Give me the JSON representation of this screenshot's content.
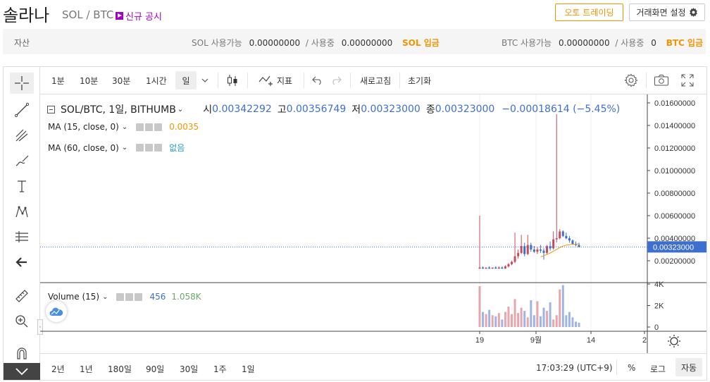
{
  "header": {
    "coin_name": "솔라나",
    "pair": "SOL / BTC",
    "notice": "신규 공시",
    "auto_trade": "오토 트레이딩",
    "screen_settings": "거래화면 설정"
  },
  "assets": {
    "label": "자산",
    "sol": {
      "label": "SOL 사용가능",
      "available": "0.00000000",
      "sep": "/ 사용중",
      "in_use": "0.00000000",
      "deposit": "SOL 입금"
    },
    "btc": {
      "label": "BTC 사용가능",
      "available": "0.00000000",
      "sep": "/ 사용중",
      "in_use": "0",
      "deposit": "BTC 입금"
    }
  },
  "toolbar": {
    "intervals": [
      "1분",
      "10분",
      "30분",
      "1시간",
      "일"
    ],
    "indicator": "지표",
    "refresh": "새로고침",
    "reset": "초기화"
  },
  "legend": {
    "main": "SOL/BTC, 1일, BITHUMB",
    "open_label": "시",
    "open": "0.00342292",
    "high_label": "고",
    "high": "0.00356749",
    "low_label": "저",
    "low": "0.00323000",
    "close_label": "종",
    "close": "0.00323000",
    "change": "−0.00018614 (−5.45%)",
    "ma15_label": "MA (15, close, 0)",
    "ma15_value": "0.0035",
    "ma60_label": "MA (60, close, 0)",
    "ma60_value": "없음",
    "volume_label": "Volume (15)",
    "vol_a": "456",
    "vol_b": "1.058K"
  },
  "bottom": {
    "ranges": [
      "2년",
      "1년",
      "180일",
      "90일",
      "30일",
      "1주",
      "1일"
    ],
    "time": "17:03:29 (UTC+9)",
    "percent": "%",
    "log": "로그",
    "auto": "자동"
  },
  "colors": {
    "up": "#c84a5e",
    "down": "#3d6fd0",
    "accent": "#f29400",
    "notice": "#a300c8"
  },
  "chart_data": {
    "type": "candlestick",
    "price_axis": {
      "ticks": [
        "0.01600000",
        "0.01400000",
        "0.01200000",
        "0.01000000",
        "0.00800000",
        "0.00600000",
        "0.00400000",
        "0.00200000"
      ],
      "current": "0.00323000",
      "range": [
        0,
        0.017
      ]
    },
    "volume_axis": {
      "ticks": [
        "4K",
        "2K",
        "0"
      ]
    },
    "time_axis": {
      "ticks": [
        "19",
        "9월",
        "14",
        "2"
      ]
    },
    "candles": [
      {
        "o": 0.0013,
        "h": 0.006,
        "l": 0.0013,
        "c": 0.0014
      },
      {
        "o": 0.0014,
        "h": 0.0015,
        "l": 0.0013,
        "c": 0.0013
      },
      {
        "o": 0.0013,
        "h": 0.0014,
        "l": 0.0013,
        "c": 0.0014
      },
      {
        "o": 0.0014,
        "h": 0.0015,
        "l": 0.0013,
        "c": 0.0013
      },
      {
        "o": 0.0013,
        "h": 0.0014,
        "l": 0.0013,
        "c": 0.0014
      },
      {
        "o": 0.0014,
        "h": 0.0015,
        "l": 0.0013,
        "c": 0.0013
      },
      {
        "o": 0.0013,
        "h": 0.0015,
        "l": 0.0013,
        "c": 0.0014
      },
      {
        "o": 0.0014,
        "h": 0.0015,
        "l": 0.0013,
        "c": 0.0013
      },
      {
        "o": 0.0013,
        "h": 0.0016,
        "l": 0.0013,
        "c": 0.0015
      },
      {
        "o": 0.0015,
        "h": 0.0018,
        "l": 0.0014,
        "c": 0.0017
      },
      {
        "o": 0.0017,
        "h": 0.002,
        "l": 0.0016,
        "c": 0.0019
      },
      {
        "o": 0.0019,
        "h": 0.0045,
        "l": 0.0018,
        "c": 0.0024
      },
      {
        "o": 0.0024,
        "h": 0.003,
        "l": 0.0022,
        "c": 0.0027
      },
      {
        "o": 0.0027,
        "h": 0.0043,
        "l": 0.0026,
        "c": 0.0033
      },
      {
        "o": 0.0033,
        "h": 0.0036,
        "l": 0.0024,
        "c": 0.0026
      },
      {
        "o": 0.0026,
        "h": 0.0043,
        "l": 0.0025,
        "c": 0.0034
      },
      {
        "o": 0.0034,
        "h": 0.0036,
        "l": 0.0028,
        "c": 0.003
      },
      {
        "o": 0.003,
        "h": 0.0033,
        "l": 0.0027,
        "c": 0.0028
      },
      {
        "o": 0.0028,
        "h": 0.0032,
        "l": 0.0026,
        "c": 0.003
      },
      {
        "o": 0.003,
        "h": 0.0034,
        "l": 0.0027,
        "c": 0.0029
      },
      {
        "o": 0.0029,
        "h": 0.0031,
        "l": 0.0021,
        "c": 0.0027
      },
      {
        "o": 0.0027,
        "h": 0.0034,
        "l": 0.0026,
        "c": 0.0033
      },
      {
        "o": 0.0033,
        "h": 0.0037,
        "l": 0.0029,
        "c": 0.0031
      },
      {
        "o": 0.0031,
        "h": 0.0046,
        "l": 0.003,
        "c": 0.0039
      },
      {
        "o": 0.0039,
        "h": 0.015,
        "l": 0.0036,
        "c": 0.004
      },
      {
        "o": 0.004,
        "h": 0.0048,
        "l": 0.0039,
        "c": 0.0046
      },
      {
        "o": 0.0046,
        "h": 0.0047,
        "l": 0.0041,
        "c": 0.0042
      },
      {
        "o": 0.0042,
        "h": 0.0045,
        "l": 0.0039,
        "c": 0.004
      },
      {
        "o": 0.004,
        "h": 0.0042,
        "l": 0.0036,
        "c": 0.0038
      },
      {
        "o": 0.0038,
        "h": 0.0039,
        "l": 0.0034,
        "c": 0.0035
      },
      {
        "o": 0.0035,
        "h": 0.0037,
        "l": 0.0033,
        "c": 0.0034
      },
      {
        "o": 0.0034,
        "h": 0.0036,
        "l": 0.0032,
        "c": 0.0032
      }
    ],
    "volumes": [
      3.8,
      1.4,
      1.2,
      1.6,
      1.1,
      1.0,
      1.3,
      0.7,
      1.4,
      1.9,
      1.2,
      2.6,
      1.3,
      1.8,
      1.5,
      0.9,
      2.5,
      1.1,
      2.4,
      1.0,
      1.8,
      1.5,
      2.3,
      0.7,
      1.1,
      3.5,
      3.9,
      1.1,
      1.4,
      0.9,
      0.5,
      0.4
    ]
  }
}
